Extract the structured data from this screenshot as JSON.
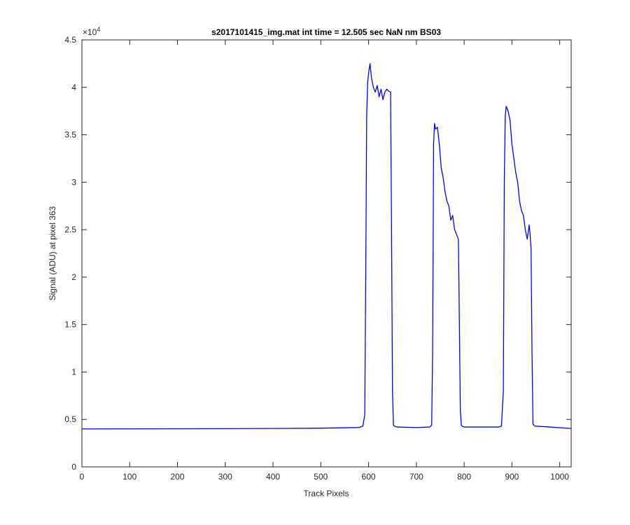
{
  "chart_data": {
    "type": "line",
    "title": "s2017101415_img.mat int time = 12.505 sec  NaN nm BS03",
    "xlabel": "Track Pixels",
    "ylabel": "Signal (ADU) at pixel 363",
    "exponent_base": "×10",
    "exponent_power": "4",
    "xlim": [
      0,
      1024
    ],
    "ylim": [
      0,
      45000
    ],
    "xticks": [
      0,
      100,
      200,
      300,
      400,
      500,
      600,
      700,
      800,
      900,
      1000
    ],
    "yticks": [
      0,
      5000,
      10000,
      15000,
      20000,
      25000,
      30000,
      35000,
      40000,
      45000
    ],
    "xtick_labels": [
      "0",
      "100",
      "200",
      "300",
      "400",
      "500",
      "600",
      "700",
      "800",
      "900",
      "1000"
    ],
    "ytick_labels": [
      "0",
      "0.5",
      "1",
      "1.5",
      "2",
      "2.5",
      "3",
      "3.5",
      "4",
      "4.5"
    ],
    "grid": false,
    "line_color": "#0000ff",
    "series": [
      {
        "x": [
          0,
          100,
          200,
          300,
          400,
          500,
          580,
          588,
          592,
          594,
          596,
          598,
          600,
          603,
          606,
          610,
          614,
          618,
          622,
          626,
          630,
          634,
          638,
          642,
          646,
          648,
          650,
          652,
          654,
          660,
          700,
          728,
          732,
          734,
          736,
          738,
          740,
          744,
          748,
          752,
          756,
          760,
          764,
          768,
          772,
          776,
          780,
          784,
          788,
          790,
          792,
          794,
          796,
          798,
          800,
          840,
          872,
          878,
          882,
          884,
          886,
          888,
          892,
          896,
          900,
          904,
          908,
          912,
          916,
          920,
          924,
          928,
          932,
          936,
          938,
          940,
          942,
          944,
          948,
          980,
          1024
        ],
        "y": [
          4000,
          4010,
          4020,
          4030,
          4050,
          4080,
          4150,
          4300,
          5500,
          20000,
          37000,
          40500,
          41500,
          42500,
          41000,
          40000,
          39500,
          40200,
          39000,
          39800,
          38700,
          39500,
          39800,
          39600,
          39500,
          25000,
          8000,
          4400,
          4300,
          4200,
          4150,
          4200,
          4400,
          12000,
          34000,
          36200,
          35600,
          35800,
          34000,
          31500,
          30500,
          29000,
          28000,
          27500,
          26000,
          26500,
          25000,
          24500,
          24000,
          15000,
          6000,
          4400,
          4300,
          4250,
          4200,
          4200,
          4200,
          4300,
          8000,
          30000,
          37000,
          38000,
          37500,
          36500,
          34000,
          32500,
          31000,
          30000,
          28000,
          27000,
          26500,
          25000,
          24000,
          25500,
          24500,
          23000,
          12000,
          4500,
          4300,
          4200,
          4050
        ]
      }
    ]
  }
}
